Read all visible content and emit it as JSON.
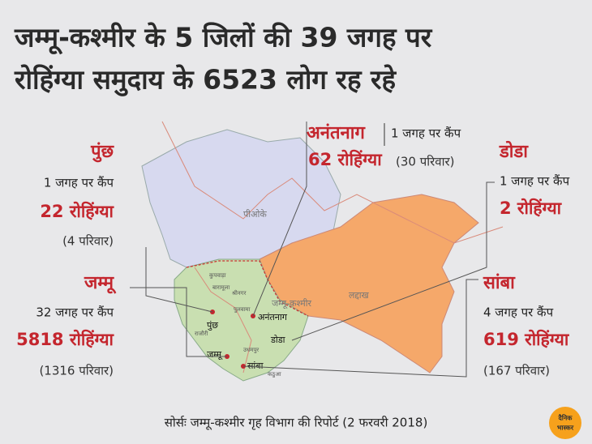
{
  "header": {
    "title_lines": [
      "जम्मू-कश्मीर के 5 जिलों की 39 जगह पर",
      "रोहिंग्या समुदाय के 6523 लोग रह रहे"
    ]
  },
  "districts": [
    {
      "name": "अनंतनाग",
      "camps": "1 जगह पर कैंप",
      "people": "62 रोहिंग्या",
      "families": "(30 परिवार)"
    },
    {
      "name": "पुंछ",
      "camps": "1 जगह पर कैंप",
      "people": "22 रोहिंग्या",
      "families": "(4 परिवार)"
    },
    {
      "name": "डोडा",
      "camps": "1 जगह पर कैंप",
      "people": "2 रोहिंग्या"
    },
    {
      "name": "जम्मू",
      "camps": "32 जगह पर कैंप",
      "people": "5818 रोहिंग्या",
      "families": "(1316 परिवार)"
    },
    {
      "name": "सांबा",
      "camps": "4 जगह पर कैंप",
      "people": "619 रोहिंग्या",
      "families": "(167 परिवार)"
    }
  ],
  "map": {
    "regions": [
      "पीओके",
      "लद्दाख",
      "जम्मू-कश्मीर"
    ],
    "places": [
      "पुंछ",
      "अनंतनाग",
      "डोडा",
      "जम्मू",
      "सांबा"
    ],
    "minor_places": [
      "कुपवाड़ा",
      "बारामूला",
      "श्रीनगर",
      "पुलवामा",
      "राजौरी",
      "उधमपुर",
      "कठुआ"
    ]
  },
  "source": "सोर्सः जम्मू-कश्मीर गृह विभाग की रिपोर्ट (2 फरवरी 2018)",
  "logo": [
    "दैनिक",
    "भास्कर"
  ]
}
